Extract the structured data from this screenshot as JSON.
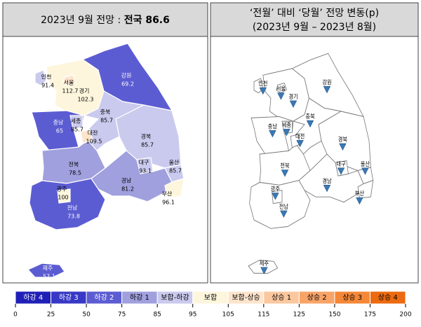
{
  "left_panel": {
    "title_prefix": "2023년 9월 전망 : ",
    "title_emphasis": "전국 86.6",
    "regions": [
      {
        "name": "인천",
        "value": 91.4
      },
      {
        "name": "서울",
        "value": 112.7
      },
      {
        "name": "경기",
        "value": 102.3
      },
      {
        "name": "강원",
        "value": 69.2
      },
      {
        "name": "충북",
        "value": 85.7
      },
      {
        "name": "충남",
        "value": 65
      },
      {
        "name": "세종",
        "value": 85.7
      },
      {
        "name": "대전",
        "value": 109.5
      },
      {
        "name": "경북",
        "value": 85.7
      },
      {
        "name": "대구",
        "value": 93.1
      },
      {
        "name": "울산",
        "value": 85.7
      },
      {
        "name": "전북",
        "value": 78.5
      },
      {
        "name": "경남",
        "value": 81.2
      },
      {
        "name": "부산",
        "value": 96.1
      },
      {
        "name": "광주",
        "value": 100
      },
      {
        "name": "전남",
        "value": 73.8
      },
      {
        "name": "제주",
        "value": 57.1
      }
    ]
  },
  "right_panel": {
    "title_line1": "‘전월’ 대비 ‘당월’ 전망 변동(p)",
    "title_line2": "(2023년 9월 – 2023년 8월)",
    "regions": [
      "인천",
      "서울",
      "경기",
      "강원",
      "충북",
      "충남",
      "세종",
      "대전",
      "경북",
      "대구",
      "울산",
      "전북",
      "경남",
      "부산",
      "광주",
      "전남",
      "제주"
    ]
  },
  "legend": {
    "classes": [
      {
        "label": "하강 4",
        "color": "#2020b8"
      },
      {
        "label": "하강 3",
        "color": "#3838c6"
      },
      {
        "label": "하강 2",
        "color": "#5c5cd2"
      },
      {
        "label": "하강 1",
        "color": "#a0a0de"
      },
      {
        "label": "보합-하강",
        "color": "#cacaee"
      },
      {
        "label": "보합",
        "color": "#fdf6dc"
      },
      {
        "label": "보합-상승",
        "color": "#fde4cc"
      },
      {
        "label": "상승 1",
        "color": "#fbc79e"
      },
      {
        "label": "상승 2",
        "color": "#f8a468"
      },
      {
        "label": "상승 3",
        "color": "#f48838"
      },
      {
        "label": "상승 4",
        "color": "#ec6a10"
      }
    ],
    "breaks": [
      0,
      25,
      50,
      75,
      85,
      95,
      105,
      115,
      125,
      150,
      175,
      200
    ]
  }
}
